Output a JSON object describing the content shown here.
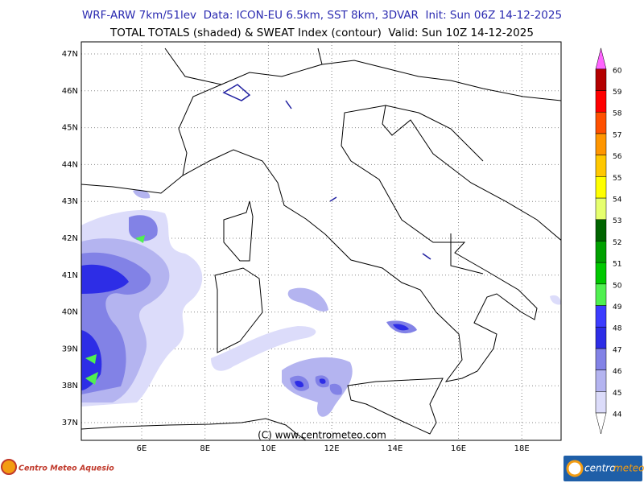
{
  "header": {
    "line1": "WRF-ARW 7km/51lev  Data: ICON-EU 6.5km, SST 8km, 3DVAR  Init: Sun 06Z 14-12-2025",
    "line2": "TOTAL TOTALS (shaded) & SWEAT Index (contour)  Valid: Sun 10Z 14-12-2025"
  },
  "map": {
    "lat_labels": [
      "47N",
      "46N",
      "45N",
      "44N",
      "43N",
      "42N",
      "41N",
      "40N",
      "39N",
      "38N",
      "37N"
    ],
    "lon_labels": [
      "6E",
      "8E",
      "10E",
      "12E",
      "14E",
      "16E",
      "18E"
    ],
    "copyright": "(C) www.centrometeo.com"
  },
  "colorbar": {
    "levels": [
      44,
      45,
      46,
      47,
      48,
      49,
      50,
      51,
      52,
      53,
      54,
      55,
      56,
      57,
      58,
      59,
      60
    ],
    "colors": [
      "#dcdcfa",
      "#b4b4f0",
      "#8282e6",
      "#2d2de6",
      "#3c3cff",
      "#50f050",
      "#00c800",
      "#00a000",
      "#006400",
      "#e6ff6e",
      "#ffff00",
      "#ffc800",
      "#ff9600",
      "#ff5000",
      "#ff0000",
      "#b40000",
      "#ff64ff",
      "#e600e6",
      "#990099"
    ]
  },
  "footer": {
    "left_logo": "Centro Meteo Aquesio",
    "right_logo_a": "centro",
    "right_logo_b": "meteo"
  }
}
